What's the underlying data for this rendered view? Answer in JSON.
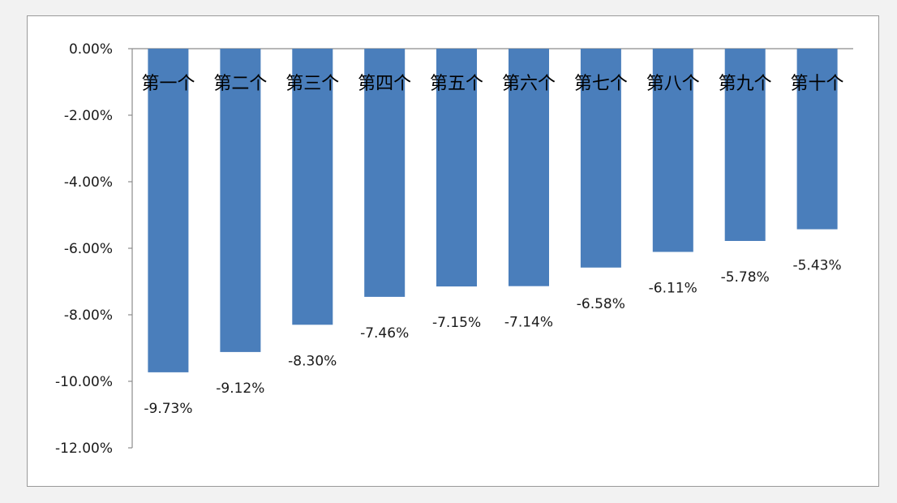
{
  "chart_data": {
    "type": "bar",
    "categories": [
      "第一个",
      "第二个",
      "第三个",
      "第四个",
      "第五个",
      "第六个",
      "第七个",
      "第八个",
      "第九个",
      "第十个"
    ],
    "values": [
      -9.73,
      -9.12,
      -8.3,
      -7.46,
      -7.15,
      -7.14,
      -6.58,
      -6.11,
      -5.78,
      -5.43
    ],
    "data_labels": [
      "-9.73%",
      "-9.12%",
      "-8.30%",
      "-7.46%",
      "-7.15%",
      "-7.14%",
      "-6.58%",
      "-6.11%",
      "-5.78%",
      "-5.43%"
    ],
    "y_ticks": [
      0,
      -2,
      -4,
      -6,
      -8,
      -10,
      -12
    ],
    "y_tick_labels": [
      "0.00%",
      "-2.00%",
      "-4.00%",
      "-6.00%",
      "-8.00%",
      "-10.00%",
      "-12.00%"
    ],
    "ylim": [
      -12,
      0
    ],
    "unit": "%",
    "grid": false,
    "legend": "none",
    "bar_color": "#4a7ebb",
    "category_label_position": "inside-top"
  }
}
